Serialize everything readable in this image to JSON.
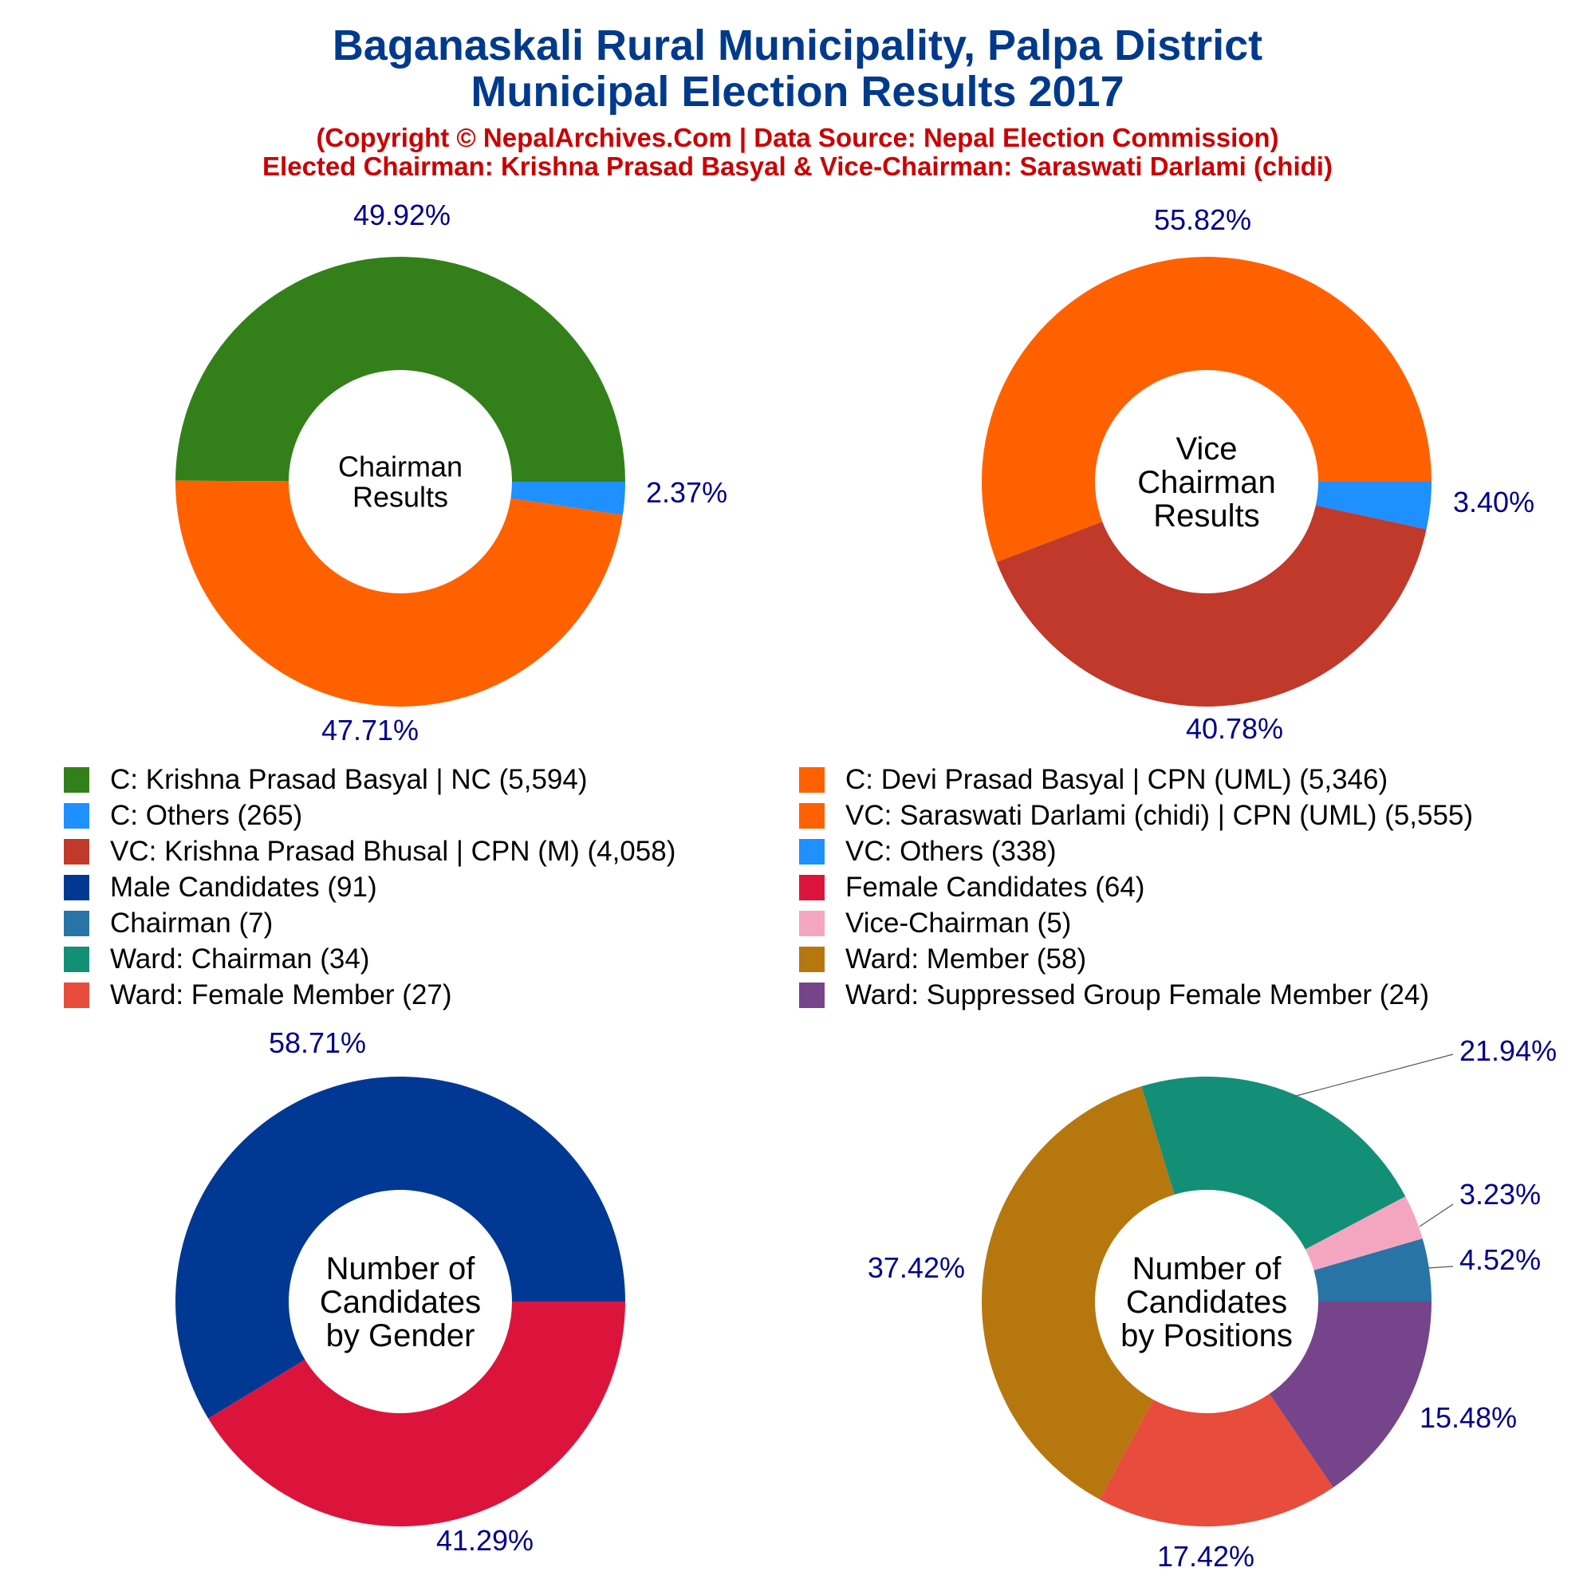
{
  "header": {
    "title_line1": "Baganaskali Rural Municipality, Palpa District",
    "title_line2": "Municipal Election Results 2017",
    "subtitle_line1": "(Copyright © NepalArchives.Com | Data Source: Nepal Election Commission)",
    "subtitle_line2": "Elected Chairman: Krishna Prasad Basyal & Vice-Chairman: Saraswati Darlami (chidi)"
  },
  "colors": {
    "label_text": "#00008b",
    "center_text": "#000000"
  },
  "legend": [
    {
      "label": "C: Krishna Prasad Basyal | NC (5,594)",
      "color": "#33801a"
    },
    {
      "label": "C: Devi Prasad Basyal | CPN (UML) (5,346)",
      "color": "#ff6100"
    },
    {
      "label": "C: Others (265)",
      "color": "#1e90ff"
    },
    {
      "label": "VC: Saraswati Darlami (chidi) | CPN (UML) (5,555)",
      "color": "#ff6100"
    },
    {
      "label": "VC: Krishna Prasad Bhusal | CPN (M) (4,058)",
      "color": "#c0392b"
    },
    {
      "label": "VC: Others (338)",
      "color": "#1e90ff"
    },
    {
      "label": "Male Candidates (91)",
      "color": "#003893"
    },
    {
      "label": "Female Candidates (64)",
      "color": "#dc143c"
    },
    {
      "label": "Chairman (7)",
      "color": "#2874a6"
    },
    {
      "label": "Vice-Chairman (5)",
      "color": "#f4a6c0"
    },
    {
      "label": "Ward: Chairman (34)",
      "color": "#148f77"
    },
    {
      "label": "Ward: Member (58)",
      "color": "#b7770f"
    },
    {
      "label": "Ward: Female Member (27)",
      "color": "#e74c3c"
    },
    {
      "label": "Ward: Suppressed Group Female Member (24)",
      "color": "#76448a"
    }
  ],
  "chart_data": [
    {
      "type": "pie",
      "center_label": [
        "Chairman",
        "Results"
      ],
      "slices": [
        {
          "name": "C: Krishna Prasad Basyal | NC",
          "value": 5594,
          "percent_label": "49.92%",
          "color": "#33801a"
        },
        {
          "name": "C: Others",
          "value": 265,
          "percent_label": "2.37%",
          "color": "#1e90ff"
        },
        {
          "name": "C: Devi Prasad Basyal | CPN (UML)",
          "value": 5346,
          "percent_label": "47.71%",
          "color": "#ff6100"
        }
      ]
    },
    {
      "type": "pie",
      "center_label": [
        "Vice",
        "Chairman",
        "Results"
      ],
      "slices": [
        {
          "name": "VC: Saraswati Darlami (chidi) | CPN (UML)",
          "value": 5555,
          "percent_label": "55.82%",
          "color": "#ff6100"
        },
        {
          "name": "VC: Others",
          "value": 338,
          "percent_label": "3.40%",
          "color": "#1e90ff"
        },
        {
          "name": "VC: Krishna Prasad Bhusal | CPN (M)",
          "value": 4058,
          "percent_label": "40.78%",
          "color": "#c0392b"
        }
      ]
    },
    {
      "type": "pie",
      "center_label": [
        "Number of",
        "Candidates",
        "by Gender"
      ],
      "slices": [
        {
          "name": "Male Candidates",
          "value": 91,
          "percent_label": "58.71%",
          "color": "#003893"
        },
        {
          "name": "Female Candidates",
          "value": 64,
          "percent_label": "41.29%",
          "color": "#dc143c"
        }
      ]
    },
    {
      "type": "pie",
      "center_label": [
        "Number of",
        "Candidates",
        "by Positions"
      ],
      "slices": [
        {
          "name": "Chairman",
          "value": 7,
          "percent_label": "4.52%",
          "color": "#2874a6"
        },
        {
          "name": "Vice-Chairman",
          "value": 5,
          "percent_label": "3.23%",
          "color": "#f4a6c0"
        },
        {
          "name": "Ward: Chairman",
          "value": 34,
          "percent_label": "21.94%",
          "color": "#148f77"
        },
        {
          "name": "Ward: Member",
          "value": 58,
          "percent_label": "37.42%",
          "color": "#b7770f"
        },
        {
          "name": "Ward: Female Member",
          "value": 27,
          "percent_label": "17.42%",
          "color": "#e74c3c"
        },
        {
          "name": "Ward: Suppressed Group Female Member",
          "value": 24,
          "percent_label": "15.48%",
          "color": "#76448a"
        }
      ]
    }
  ]
}
